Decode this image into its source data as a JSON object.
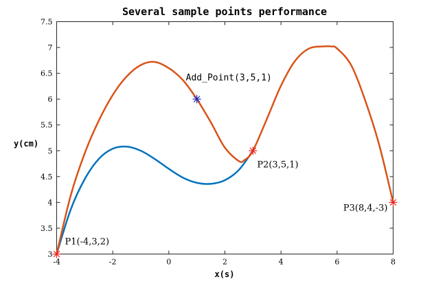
{
  "chart_data": {
    "type": "line",
    "title": "Several sample points performance",
    "xlabel": "x(s)",
    "ylabel": "y(cm)",
    "xlim": [
      -4,
      8
    ],
    "ylim": [
      3,
      7.5
    ],
    "xticks": [
      "-4",
      "-2",
      "0",
      "2",
      "4",
      "6",
      "8"
    ],
    "yticks": [
      "3",
      "3.5",
      "4",
      "4.5",
      "5",
      "5.5",
      "6",
      "6.5",
      "7",
      "7.5"
    ],
    "grid": false,
    "series": [
      {
        "color": "#0072BD",
        "x": [
          -4,
          -3.5,
          -3,
          -2.5,
          -2,
          -1.5,
          -1,
          -0.5,
          0,
          0.5,
          1,
          1.5,
          2,
          2.5,
          3
        ],
        "y": [
          3.0,
          3.86,
          4.45,
          4.84,
          5.04,
          5.08,
          5.0,
          4.84,
          4.65,
          4.48,
          4.38,
          4.36,
          4.43,
          4.63,
          5.0
        ]
      },
      {
        "color": "#D95319",
        "x": [
          -4,
          -3.5,
          -3,
          -2.5,
          -2,
          -1.5,
          -1,
          -0.5,
          0,
          0.5,
          1,
          1.5,
          2,
          2.5,
          2.7,
          3,
          3.5,
          4,
          4.5,
          5,
          5.5,
          5.8,
          6,
          6.5,
          7,
          7.5,
          8
        ],
        "y": [
          3.0,
          4.13,
          4.95,
          5.58,
          6.08,
          6.44,
          6.66,
          6.72,
          6.6,
          6.37,
          6.0,
          5.55,
          5.06,
          4.8,
          4.82,
          5.0,
          5.62,
          6.26,
          6.74,
          6.98,
          7.02,
          7.02,
          6.98,
          6.66,
          5.98,
          5.12,
          4.0
        ]
      }
    ],
    "markers": [
      {
        "x": -4,
        "y": 3,
        "color": "#E8251F",
        "label": "P1(-4,3,2)"
      },
      {
        "x": 3,
        "y": 5,
        "color": "#E8251F",
        "label": "P2(3,5,1)"
      },
      {
        "x": 8,
        "y": 4,
        "color": "#E8251F",
        "label": "P3(8,4,-3)"
      },
      {
        "x": 1,
        "y": 6,
        "color": "#1F2AB5",
        "label": "Add_Point(3,5,1)"
      }
    ]
  }
}
